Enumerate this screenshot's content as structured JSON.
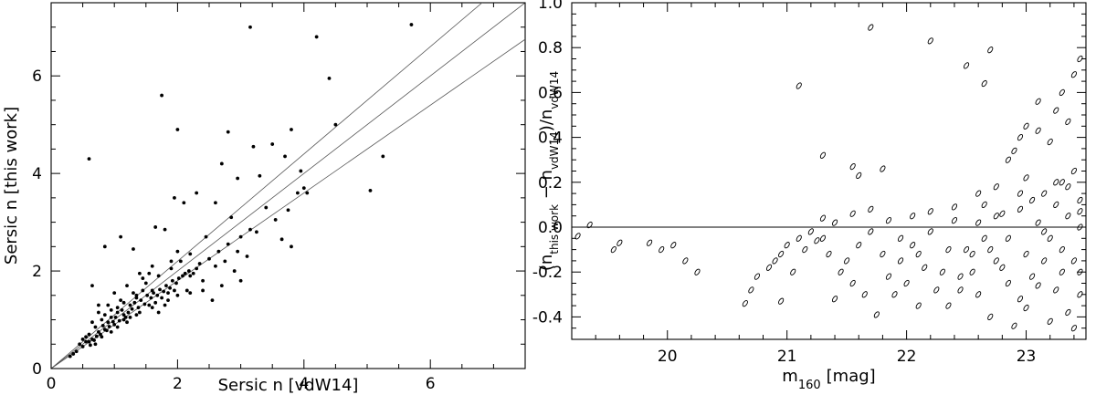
{
  "chart_data": [
    {
      "type": "scatter",
      "xlabel": "Sersic n [vdW14]",
      "ylabel": "Sersic n [this work]",
      "xlim": [
        0,
        7.5
      ],
      "ylim": [
        0,
        7.5
      ],
      "xticks": [
        "0",
        "2",
        "4",
        "6"
      ],
      "yticks": [
        "0",
        "2",
        "4",
        "6"
      ],
      "reference_line_slopes": [
        0.9,
        1.0,
        1.1
      ],
      "points": [
        [
          0.6,
          4.3
        ],
        [
          1.75,
          5.6
        ],
        [
          2.0,
          4.9
        ],
        [
          3.15,
          7.0
        ],
        [
          4.2,
          6.8
        ],
        [
          4.4,
          5.95
        ],
        [
          5.7,
          7.05
        ],
        [
          4.5,
          5.0
        ],
        [
          5.05,
          3.65
        ],
        [
          5.25,
          4.35
        ],
        [
          2.8,
          4.85
        ],
        [
          2.95,
          3.9
        ],
        [
          3.3,
          3.95
        ],
        [
          3.2,
          4.55
        ],
        [
          3.5,
          4.6
        ],
        [
          3.8,
          4.9
        ],
        [
          3.7,
          4.35
        ],
        [
          3.95,
          4.05
        ],
        [
          4.05,
          3.6
        ],
        [
          2.7,
          4.2
        ],
        [
          2.6,
          3.4
        ],
        [
          2.85,
          3.1
        ],
        [
          3.4,
          3.3
        ],
        [
          3.55,
          3.05
        ],
        [
          3.75,
          3.25
        ],
        [
          4.0,
          3.7
        ],
        [
          3.9,
          3.6
        ],
        [
          3.65,
          2.65
        ],
        [
          3.8,
          2.5
        ],
        [
          3.25,
          2.8
        ],
        [
          2.95,
          2.4
        ],
        [
          3.1,
          2.3
        ],
        [
          2.45,
          2.7
        ],
        [
          2.3,
          3.6
        ],
        [
          2.1,
          3.4
        ],
        [
          1.95,
          3.5
        ],
        [
          1.65,
          2.9
        ],
        [
          1.8,
          2.85
        ],
        [
          1.1,
          2.7
        ],
        [
          0.85,
          2.5
        ],
        [
          1.3,
          2.45
        ],
        [
          0.65,
          1.7
        ],
        [
          0.75,
          1.3
        ],
        [
          2.2,
          1.9
        ],
        [
          2.55,
          1.4
        ],
        [
          2.75,
          2.2
        ],
        [
          2.9,
          2.0
        ],
        [
          2.15,
          1.6
        ],
        [
          2.4,
          1.8
        ],
        [
          2.6,
          2.1
        ],
        [
          2.3,
          2.05
        ],
        [
          2.05,
          2.2
        ],
        [
          1.9,
          2.05
        ],
        [
          1.85,
          1.4
        ],
        [
          1.7,
          1.15
        ],
        [
          1.55,
          1.95
        ],
        [
          1.45,
          1.85
        ],
        [
          1.6,
          1.6
        ],
        [
          1.35,
          1.5
        ],
        [
          1.2,
          1.7
        ],
        [
          1.25,
          1.3
        ],
        [
          1.15,
          1.1
        ],
        [
          1.05,
          1.25
        ],
        [
          1.0,
          0.9
        ],
        [
          0.95,
          1.05
        ],
        [
          0.9,
          0.95
        ],
        [
          0.85,
          0.8
        ],
        [
          0.8,
          1.0
        ],
        [
          0.75,
          0.75
        ],
        [
          0.7,
          0.85
        ],
        [
          0.65,
          0.6
        ],
        [
          0.6,
          0.7
        ],
        [
          0.55,
          0.55
        ],
        [
          0.5,
          0.45
        ],
        [
          0.45,
          0.5
        ],
        [
          0.4,
          0.35
        ],
        [
          0.35,
          0.3
        ],
        [
          0.3,
          0.25
        ],
        [
          0.55,
          0.65
        ],
        [
          0.62,
          0.48
        ],
        [
          0.68,
          0.58
        ],
        [
          0.72,
          0.66
        ],
        [
          0.78,
          0.7
        ],
        [
          0.82,
          0.88
        ],
        [
          0.88,
          0.78
        ],
        [
          0.92,
          0.86
        ],
        [
          0.98,
          0.96
        ],
        [
          1.02,
          1.05
        ],
        [
          1.08,
          0.98
        ],
        [
          1.12,
          1.2
        ],
        [
          1.18,
          1.05
        ],
        [
          1.22,
          1.15
        ],
        [
          1.28,
          1.22
        ],
        [
          1.32,
          1.35
        ],
        [
          1.38,
          1.25
        ],
        [
          1.42,
          1.4
        ],
        [
          1.48,
          1.32
        ],
        [
          1.52,
          1.5
        ],
        [
          1.58,
          1.45
        ],
        [
          1.62,
          1.55
        ],
        [
          1.68,
          1.5
        ],
        [
          1.72,
          1.62
        ],
        [
          1.78,
          1.58
        ],
        [
          1.82,
          1.7
        ],
        [
          1.88,
          1.65
        ],
        [
          1.92,
          1.8
        ],
        [
          1.98,
          1.75
        ],
        [
          2.02,
          1.85
        ],
        [
          2.08,
          1.9
        ],
        [
          2.12,
          1.95
        ],
        [
          2.18,
          2.0
        ],
        [
          2.25,
          1.95
        ],
        [
          2.35,
          2.15
        ],
        [
          2.5,
          2.25
        ],
        [
          2.65,
          2.4
        ],
        [
          2.8,
          2.55
        ],
        [
          3.0,
          2.7
        ],
        [
          3.15,
          2.85
        ],
        [
          0.95,
          1.2
        ],
        [
          1.05,
          0.85
        ],
        [
          1.15,
          1.35
        ],
        [
          1.25,
          1.05
        ],
        [
          1.35,
          1.1
        ],
        [
          1.45,
          1.6
        ],
        [
          1.55,
          1.3
        ],
        [
          1.65,
          1.35
        ],
        [
          1.75,
          1.45
        ],
        [
          1.85,
          1.55
        ],
        [
          1.95,
          1.6
        ],
        [
          0.85,
          1.1
        ],
        [
          0.8,
          0.65
        ],
        [
          0.7,
          0.5
        ],
        [
          0.6,
          0.55
        ],
        [
          0.5,
          0.6
        ],
        [
          1.1,
          1.4
        ],
        [
          1.3,
          1.55
        ],
        [
          1.5,
          1.75
        ],
        [
          1.7,
          1.9
        ],
        [
          1.9,
          2.2
        ],
        [
          2.0,
          2.4
        ],
        [
          2.2,
          2.35
        ],
        [
          1.4,
          1.95
        ],
        [
          1.6,
          2.1
        ],
        [
          1.0,
          1.55
        ],
        [
          0.9,
          1.3
        ],
        [
          0.75,
          1.15
        ],
        [
          0.65,
          0.95
        ],
        [
          1.2,
          0.95
        ],
        [
          1.4,
          1.15
        ],
        [
          1.6,
          1.25
        ],
        [
          1.8,
          1.3
        ],
        [
          2.0,
          1.5
        ],
        [
          2.2,
          1.55
        ],
        [
          2.4,
          1.6
        ],
        [
          2.7,
          1.7
        ],
        [
          3.0,
          1.8
        ],
        [
          1.05,
          1.15
        ],
        [
          1.15,
          1.0
        ],
        [
          0.95,
          0.75
        ],
        [
          1.35,
          1.45
        ]
      ]
    },
    {
      "type": "scatter",
      "xlabel": "m",
      "xlabel_subscript": "160",
      "xlabel_unit": "[mag]",
      "ylabel_parts": [
        "(n",
        "this work",
        " − n",
        "vdW14",
        ")/n",
        "vdW14"
      ],
      "xlim": [
        19.2,
        23.5
      ],
      "ylim": [
        -0.5,
        1.0
      ],
      "xticks": [
        "20",
        "21",
        "22",
        "23"
      ],
      "yticks": [
        "-0.4",
        "-0.2",
        "0.0",
        "0.2",
        "0.4",
        "0.6",
        "0.8",
        "1.0"
      ],
      "zero_line": 0.0,
      "points": [
        [
          19.25,
          -0.04
        ],
        [
          19.35,
          0.01
        ],
        [
          19.55,
          -0.1
        ],
        [
          19.6,
          -0.07
        ],
        [
          19.85,
          -0.07
        ],
        [
          19.95,
          -0.1
        ],
        [
          20.05,
          -0.08
        ],
        [
          20.15,
          -0.15
        ],
        [
          20.25,
          -0.2
        ],
        [
          20.65,
          -0.34
        ],
        [
          20.95,
          -0.33
        ],
        [
          21.1,
          0.63
        ],
        [
          21.3,
          0.32
        ],
        [
          21.55,
          0.27
        ],
        [
          21.6,
          0.23
        ],
        [
          21.7,
          0.89
        ],
        [
          21.8,
          0.26
        ],
        [
          22.2,
          0.83
        ],
        [
          22.5,
          0.72
        ],
        [
          22.7,
          0.79
        ],
        [
          22.65,
          0.64
        ],
        [
          22.85,
          0.3
        ],
        [
          23.45,
          0.75
        ],
        [
          23.4,
          0.68
        ],
        [
          23.3,
          0.6
        ],
        [
          23.25,
          0.52
        ],
        [
          23.1,
          0.56
        ],
        [
          23.0,
          0.45
        ],
        [
          22.95,
          0.4
        ],
        [
          22.9,
          0.34
        ],
        [
          23.1,
          0.43
        ],
        [
          23.2,
          0.38
        ],
        [
          23.35,
          0.47
        ],
        [
          23.4,
          0.25
        ],
        [
          23.3,
          0.2
        ],
        [
          23.45,
          0.12
        ],
        [
          23.0,
          0.22
        ],
        [
          22.75,
          0.18
        ],
        [
          22.6,
          0.15
        ],
        [
          22.4,
          0.09
        ],
        [
          22.2,
          0.07
        ],
        [
          22.05,
          0.05
        ],
        [
          21.85,
          0.03
        ],
        [
          21.7,
          0.08
        ],
        [
          21.55,
          0.06
        ],
        [
          21.4,
          0.02
        ],
        [
          21.3,
          0.04
        ],
        [
          21.2,
          -0.02
        ],
        [
          21.1,
          -0.05
        ],
        [
          21.0,
          -0.08
        ],
        [
          20.95,
          -0.12
        ],
        [
          20.9,
          -0.15
        ],
        [
          20.85,
          -0.18
        ],
        [
          20.75,
          -0.22
        ],
        [
          20.7,
          -0.28
        ],
        [
          21.05,
          -0.2
        ],
        [
          21.15,
          -0.1
        ],
        [
          21.25,
          -0.06
        ],
        [
          21.35,
          -0.12
        ],
        [
          21.45,
          -0.2
        ],
        [
          21.55,
          -0.25
        ],
        [
          21.65,
          -0.3
        ],
        [
          21.75,
          -0.39
        ],
        [
          21.85,
          -0.22
        ],
        [
          21.95,
          -0.15
        ],
        [
          22.05,
          -0.08
        ],
        [
          22.15,
          -0.18
        ],
        [
          22.25,
          -0.28
        ],
        [
          22.35,
          -0.35
        ],
        [
          22.45,
          -0.22
        ],
        [
          22.55,
          -0.12
        ],
        [
          22.65,
          -0.05
        ],
        [
          22.75,
          -0.15
        ],
        [
          22.85,
          -0.25
        ],
        [
          22.95,
          -0.32
        ],
        [
          23.05,
          -0.22
        ],
        [
          23.15,
          -0.15
        ],
        [
          23.25,
          -0.28
        ],
        [
          23.35,
          -0.38
        ],
        [
          23.45,
          -0.3
        ],
        [
          22.9,
          -0.44
        ],
        [
          23.2,
          -0.42
        ],
        [
          23.4,
          -0.45
        ],
        [
          22.7,
          -0.4
        ],
        [
          23.0,
          -0.36
        ],
        [
          22.5,
          -0.1
        ],
        [
          22.6,
          0.02
        ],
        [
          22.8,
          0.06
        ],
        [
          22.95,
          0.08
        ],
        [
          23.05,
          0.12
        ],
        [
          23.15,
          0.15
        ],
        [
          23.25,
          0.1
        ],
        [
          23.35,
          0.05
        ],
        [
          23.45,
          0.0
        ],
        [
          23.1,
          0.02
        ],
        [
          23.2,
          -0.05
        ],
        [
          23.3,
          -0.1
        ],
        [
          23.4,
          -0.15
        ],
        [
          23.45,
          -0.2
        ],
        [
          22.85,
          -0.05
        ],
        [
          22.7,
          -0.1
        ],
        [
          22.55,
          -0.2
        ],
        [
          22.45,
          -0.28
        ],
        [
          22.35,
          -0.1
        ],
        [
          22.2,
          -0.02
        ],
        [
          22.1,
          -0.12
        ],
        [
          21.95,
          -0.05
        ],
        [
          21.8,
          -0.12
        ],
        [
          21.7,
          -0.02
        ],
        [
          21.6,
          -0.08
        ],
        [
          21.5,
          -0.15
        ],
        [
          21.4,
          -0.32
        ],
        [
          21.3,
          -0.05
        ],
        [
          22.4,
          0.03
        ],
        [
          22.3,
          -0.2
        ],
        [
          22.0,
          -0.25
        ],
        [
          21.9,
          -0.3
        ],
        [
          22.1,
          -0.35
        ],
        [
          22.6,
          -0.3
        ],
        [
          22.8,
          -0.18
        ],
        [
          23.0,
          -0.12
        ],
        [
          23.1,
          -0.26
        ],
        [
          23.3,
          -0.2
        ],
        [
          23.45,
          0.07
        ],
        [
          23.35,
          0.18
        ],
        [
          23.25,
          0.2
        ],
        [
          22.95,
          0.15
        ],
        [
          22.75,
          0.05
        ],
        [
          22.65,
          0.1
        ],
        [
          23.15,
          -0.02
        ]
      ]
    }
  ]
}
